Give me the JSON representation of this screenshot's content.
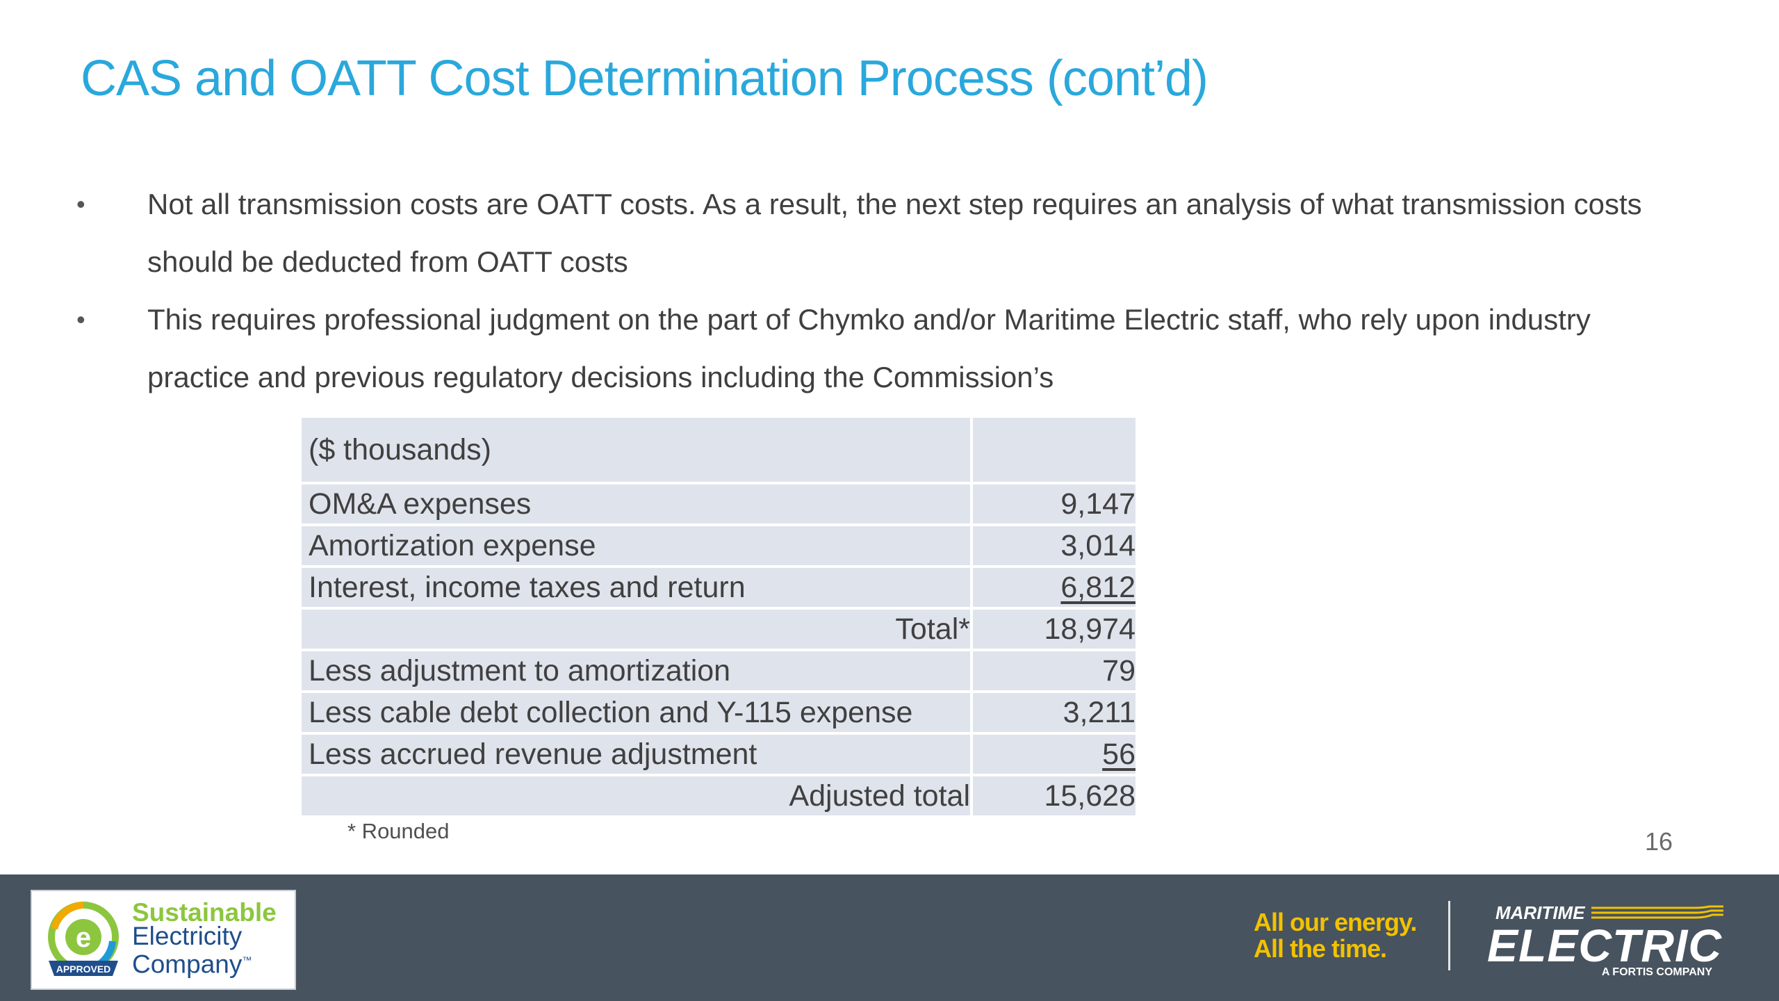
{
  "slide": {
    "title": "CAS and OATT Cost Determination Process (cont’d)",
    "bullets": [
      "Not all transmission costs are OATT costs.  As a result, the next step requires an analysis of what transmission costs should be deducted from OATT costs",
      "This requires professional judgment on the part of Chymko and/or Maritime Electric staff, who rely upon industry practice and previous regulatory decisions including the Commission’s"
    ],
    "bullet_glyph": "•",
    "page_number": "16"
  },
  "table": {
    "header": "($ thousands)",
    "rows": [
      {
        "label": "OM&A expenses",
        "value": "9,147"
      },
      {
        "label": "Amortization expense",
        "value": "3,014"
      },
      {
        "label": "Interest, income taxes and return",
        "value": "6,812"
      },
      {
        "label": "Total*",
        "value": "18,974"
      },
      {
        "label": "Less adjustment to amortization",
        "value": "79"
      },
      {
        "label": "Less cable debt collection and Y-115 expense",
        "value": "3,211"
      },
      {
        "label": "Less accrued revenue adjustment",
        "value": "56"
      },
      {
        "label": "Adjusted total",
        "value": "15,628"
      }
    ],
    "footnote": "* Rounded"
  },
  "footer": {
    "sec_logo": {
      "line1": "Sustainable",
      "line2": "Electricity",
      "line3": "Company",
      "tm": "™",
      "badge": "APPROVED",
      "icon": "recycle-e-icon"
    },
    "tagline": {
      "line1": "All our energy.",
      "line2": "All the time."
    },
    "brand": {
      "line1": "MARITIME",
      "line2": "ELECTRIC",
      "line3": "A FORTIS COMPANY"
    },
    "colors": {
      "bar": "#47535e",
      "title": "#2aa8dc",
      "tagline": "#f2c200",
      "sec_green": "#8cc63f",
      "sec_blue": "#1f4e8c"
    }
  }
}
